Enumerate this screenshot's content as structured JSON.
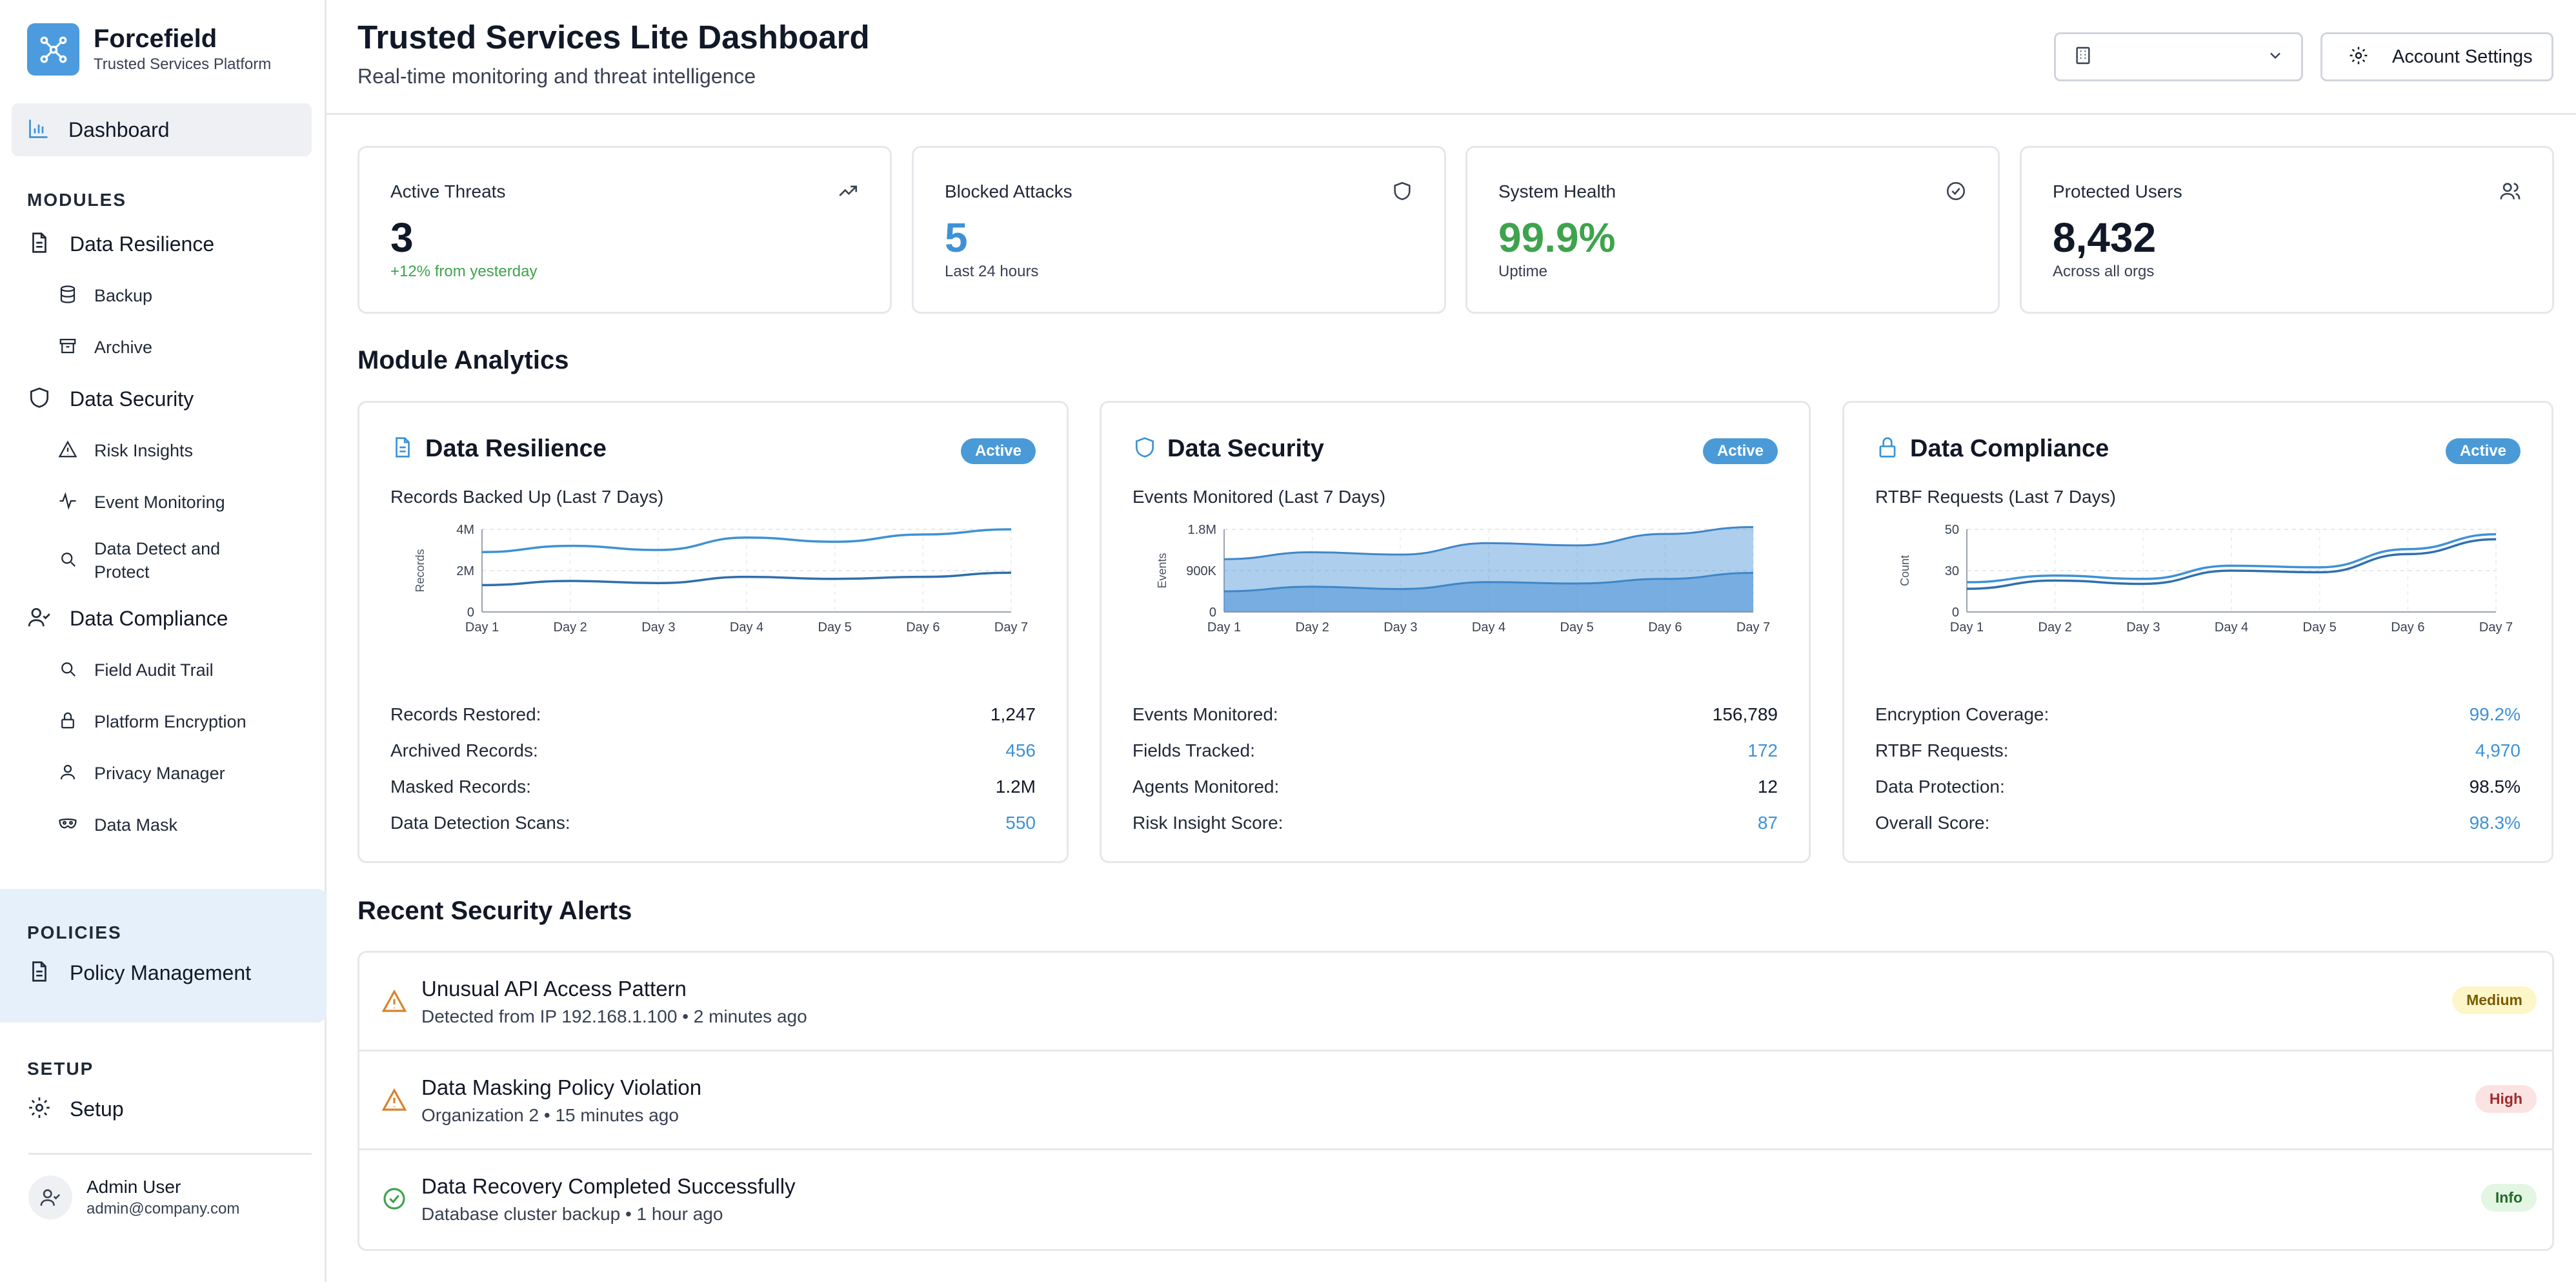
{
  "brand": {
    "name": "Forcefield",
    "subtitle": "Trusted Services Platform",
    "icon": "network-icon",
    "color": "#4c9bde"
  },
  "sidebar": {
    "dashboard": {
      "label": "Dashboard",
      "icon": "bar-chart-icon"
    },
    "modules_title": "MODULES",
    "data_resilience": {
      "label": "Data Resilience",
      "icon": "file-icon",
      "items": [
        {
          "label": "Backup",
          "icon": "database-icon"
        },
        {
          "label": "Archive",
          "icon": "archive-icon"
        }
      ]
    },
    "data_security": {
      "label": "Data Security",
      "icon": "shield-icon",
      "items": [
        {
          "label": "Risk Insights",
          "icon": "warning-icon"
        },
        {
          "label": "Event Monitoring",
          "icon": "activity-icon"
        },
        {
          "label": "Data Detect and Protect",
          "label_line1": "Data Detect and",
          "label_line2": "Protect",
          "icon": "search-icon"
        }
      ]
    },
    "data_compliance": {
      "label": "Data Compliance",
      "icon": "user-check-icon",
      "items": [
        {
          "label": "Field Audit Trail",
          "icon": "search-icon"
        },
        {
          "label": "Platform Encryption",
          "icon": "lock-icon"
        },
        {
          "label": "Privacy Manager",
          "icon": "user-icon"
        },
        {
          "label": "Data Mask",
          "icon": "mask-icon"
        }
      ]
    },
    "policies_title": "POLICIES",
    "policy_management": {
      "label": "Policy Management",
      "icon": "file-icon"
    },
    "setup_title": "SETUP",
    "setup": {
      "label": "Setup",
      "icon": "gear-icon"
    },
    "user": {
      "name": "Admin User",
      "email": "admin@company.com"
    }
  },
  "header": {
    "title": "Trusted Services Lite Dashboard",
    "subtitle": "Real-time monitoring and threat intelligence",
    "org_select": {
      "value": "",
      "icon": "building-icon"
    },
    "settings_label": "Account Settings"
  },
  "stats": [
    {
      "title": "Active Threats",
      "value": "3",
      "sub": "+12% from yesterday",
      "icon": "trending-up-icon",
      "value_color": "#111827",
      "sub_color": "#3fa34d"
    },
    {
      "title": "Blocked Attacks",
      "value": "5",
      "sub": "Last 24 hours",
      "icon": "shield-icon",
      "value_color": "#3d92d6",
      "sub_color": "#374151"
    },
    {
      "title": "System Health",
      "value": "99.9%",
      "sub": "Uptime",
      "icon": "check-circle-icon",
      "value_color": "#3fa34d",
      "sub_color": "#374151"
    },
    {
      "title": "Protected Users",
      "value": "8,432",
      "sub": "Across all orgs",
      "icon": "users-icon",
      "value_color": "#111827",
      "sub_color": "#374151"
    }
  ],
  "module_analytics_title": "Module Analytics",
  "modules": [
    {
      "title": "Data Resilience",
      "icon": "file-icon",
      "badge": "Active",
      "caption": "Records Backed Up (Last 7 Days)",
      "metrics": [
        {
          "label": "Records Restored:",
          "value": "1,247",
          "blue": false
        },
        {
          "label": "Archived Records:",
          "value": "456",
          "blue": true
        },
        {
          "label": "Masked Records:",
          "value": "1.2M",
          "blue": false
        },
        {
          "label": "Data Detection Scans:",
          "value": "550",
          "blue": true
        }
      ]
    },
    {
      "title": "Data Security",
      "icon": "shield-icon",
      "badge": "Active",
      "caption": "Events Monitored (Last 7 Days)",
      "metrics": [
        {
          "label": "Events Monitored:",
          "value": "156,789",
          "blue": false
        },
        {
          "label": "Fields Tracked:",
          "value": "172",
          "blue": true
        },
        {
          "label": "Agents Monitored:",
          "value": "12",
          "blue": false
        },
        {
          "label": "Risk Insight Score:",
          "value": "87",
          "blue": true
        }
      ]
    },
    {
      "title": "Data Compliance",
      "icon": "lock-icon",
      "badge": "Active",
      "caption": "RTBF Requests (Last 7 Days)",
      "metrics": [
        {
          "label": "Encryption Coverage:",
          "value": "99.2%",
          "blue": true
        },
        {
          "label": "RTBF Requests:",
          "value": "4,970",
          "blue": true
        },
        {
          "label": "Data Protection:",
          "value": "98.5%",
          "blue": false
        },
        {
          "label": "Overall Score:",
          "value": "98.3%",
          "blue": true
        }
      ]
    }
  ],
  "chart_data": [
    {
      "type": "line",
      "categories": [
        "Day 1",
        "Day 2",
        "Day 3",
        "Day 4",
        "Day 5",
        "Day 6",
        "Day 7"
      ],
      "ylabel": "Records",
      "yticks": [
        "4M",
        "2M",
        "0"
      ],
      "ylim": [
        0,
        4000000
      ],
      "series": [
        {
          "values": [
            2900000,
            3200000,
            3000000,
            3600000,
            3400000,
            3750000,
            4000000
          ]
        },
        {
          "values": [
            1300000,
            1500000,
            1400000,
            1700000,
            1600000,
            1700000,
            1900000
          ]
        }
      ]
    },
    {
      "type": "area",
      "categories": [
        "Day 1",
        "Day 2",
        "Day 3",
        "Day 4",
        "Day 5",
        "Day 6",
        "Day 7"
      ],
      "ylabel": "Events",
      "yticks": [
        "1.8M",
        "900K",
        "0"
      ],
      "ylim": [
        0,
        1800000
      ],
      "series": [
        {
          "values": [
            1150000,
            1300000,
            1250000,
            1500000,
            1450000,
            1700000,
            1850000
          ]
        },
        {
          "values": [
            450000,
            550000,
            500000,
            650000,
            620000,
            720000,
            850000
          ]
        }
      ]
    },
    {
      "type": "line",
      "categories": [
        "Day 1",
        "Day 2",
        "Day 3",
        "Day 4",
        "Day 5",
        "Day 6",
        "Day 7"
      ],
      "ylabel": "Count",
      "yticks": [
        "50",
        "30",
        "0"
      ],
      "ylim": [
        0,
        50
      ],
      "series": [
        {
          "values": [
            18,
            22,
            20,
            28,
            27,
            38,
            47
          ]
        },
        {
          "values": [
            14,
            19,
            17,
            25,
            24,
            35,
            44
          ]
        }
      ]
    }
  ],
  "alerts_title": "Recent Security Alerts",
  "alerts": [
    {
      "title": "Unusual API Access Pattern",
      "detail": "Detected from IP 192.168.1.100 • 2 minutes ago",
      "severity": "Medium",
      "icon": "warning-icon",
      "icon_color": "#d9822b",
      "pill_bg": "#fdf6c8",
      "pill_fg": "#7a5a00"
    },
    {
      "title": "Data Masking Policy Violation",
      "detail": "Organization 2 • 15 minutes ago",
      "severity": "High",
      "icon": "warning-icon",
      "icon_color": "#d9822b",
      "pill_bg": "#fbe3e3",
      "pill_fg": "#a12c2c"
    },
    {
      "title": "Data Recovery Completed Successfully",
      "detail": "Database cluster backup • 1 hour ago",
      "severity": "Info",
      "icon": "check-circle-icon",
      "icon_color": "#3fa34d",
      "pill_bg": "#e3f5e3",
      "pill_fg": "#216b2a"
    }
  ]
}
